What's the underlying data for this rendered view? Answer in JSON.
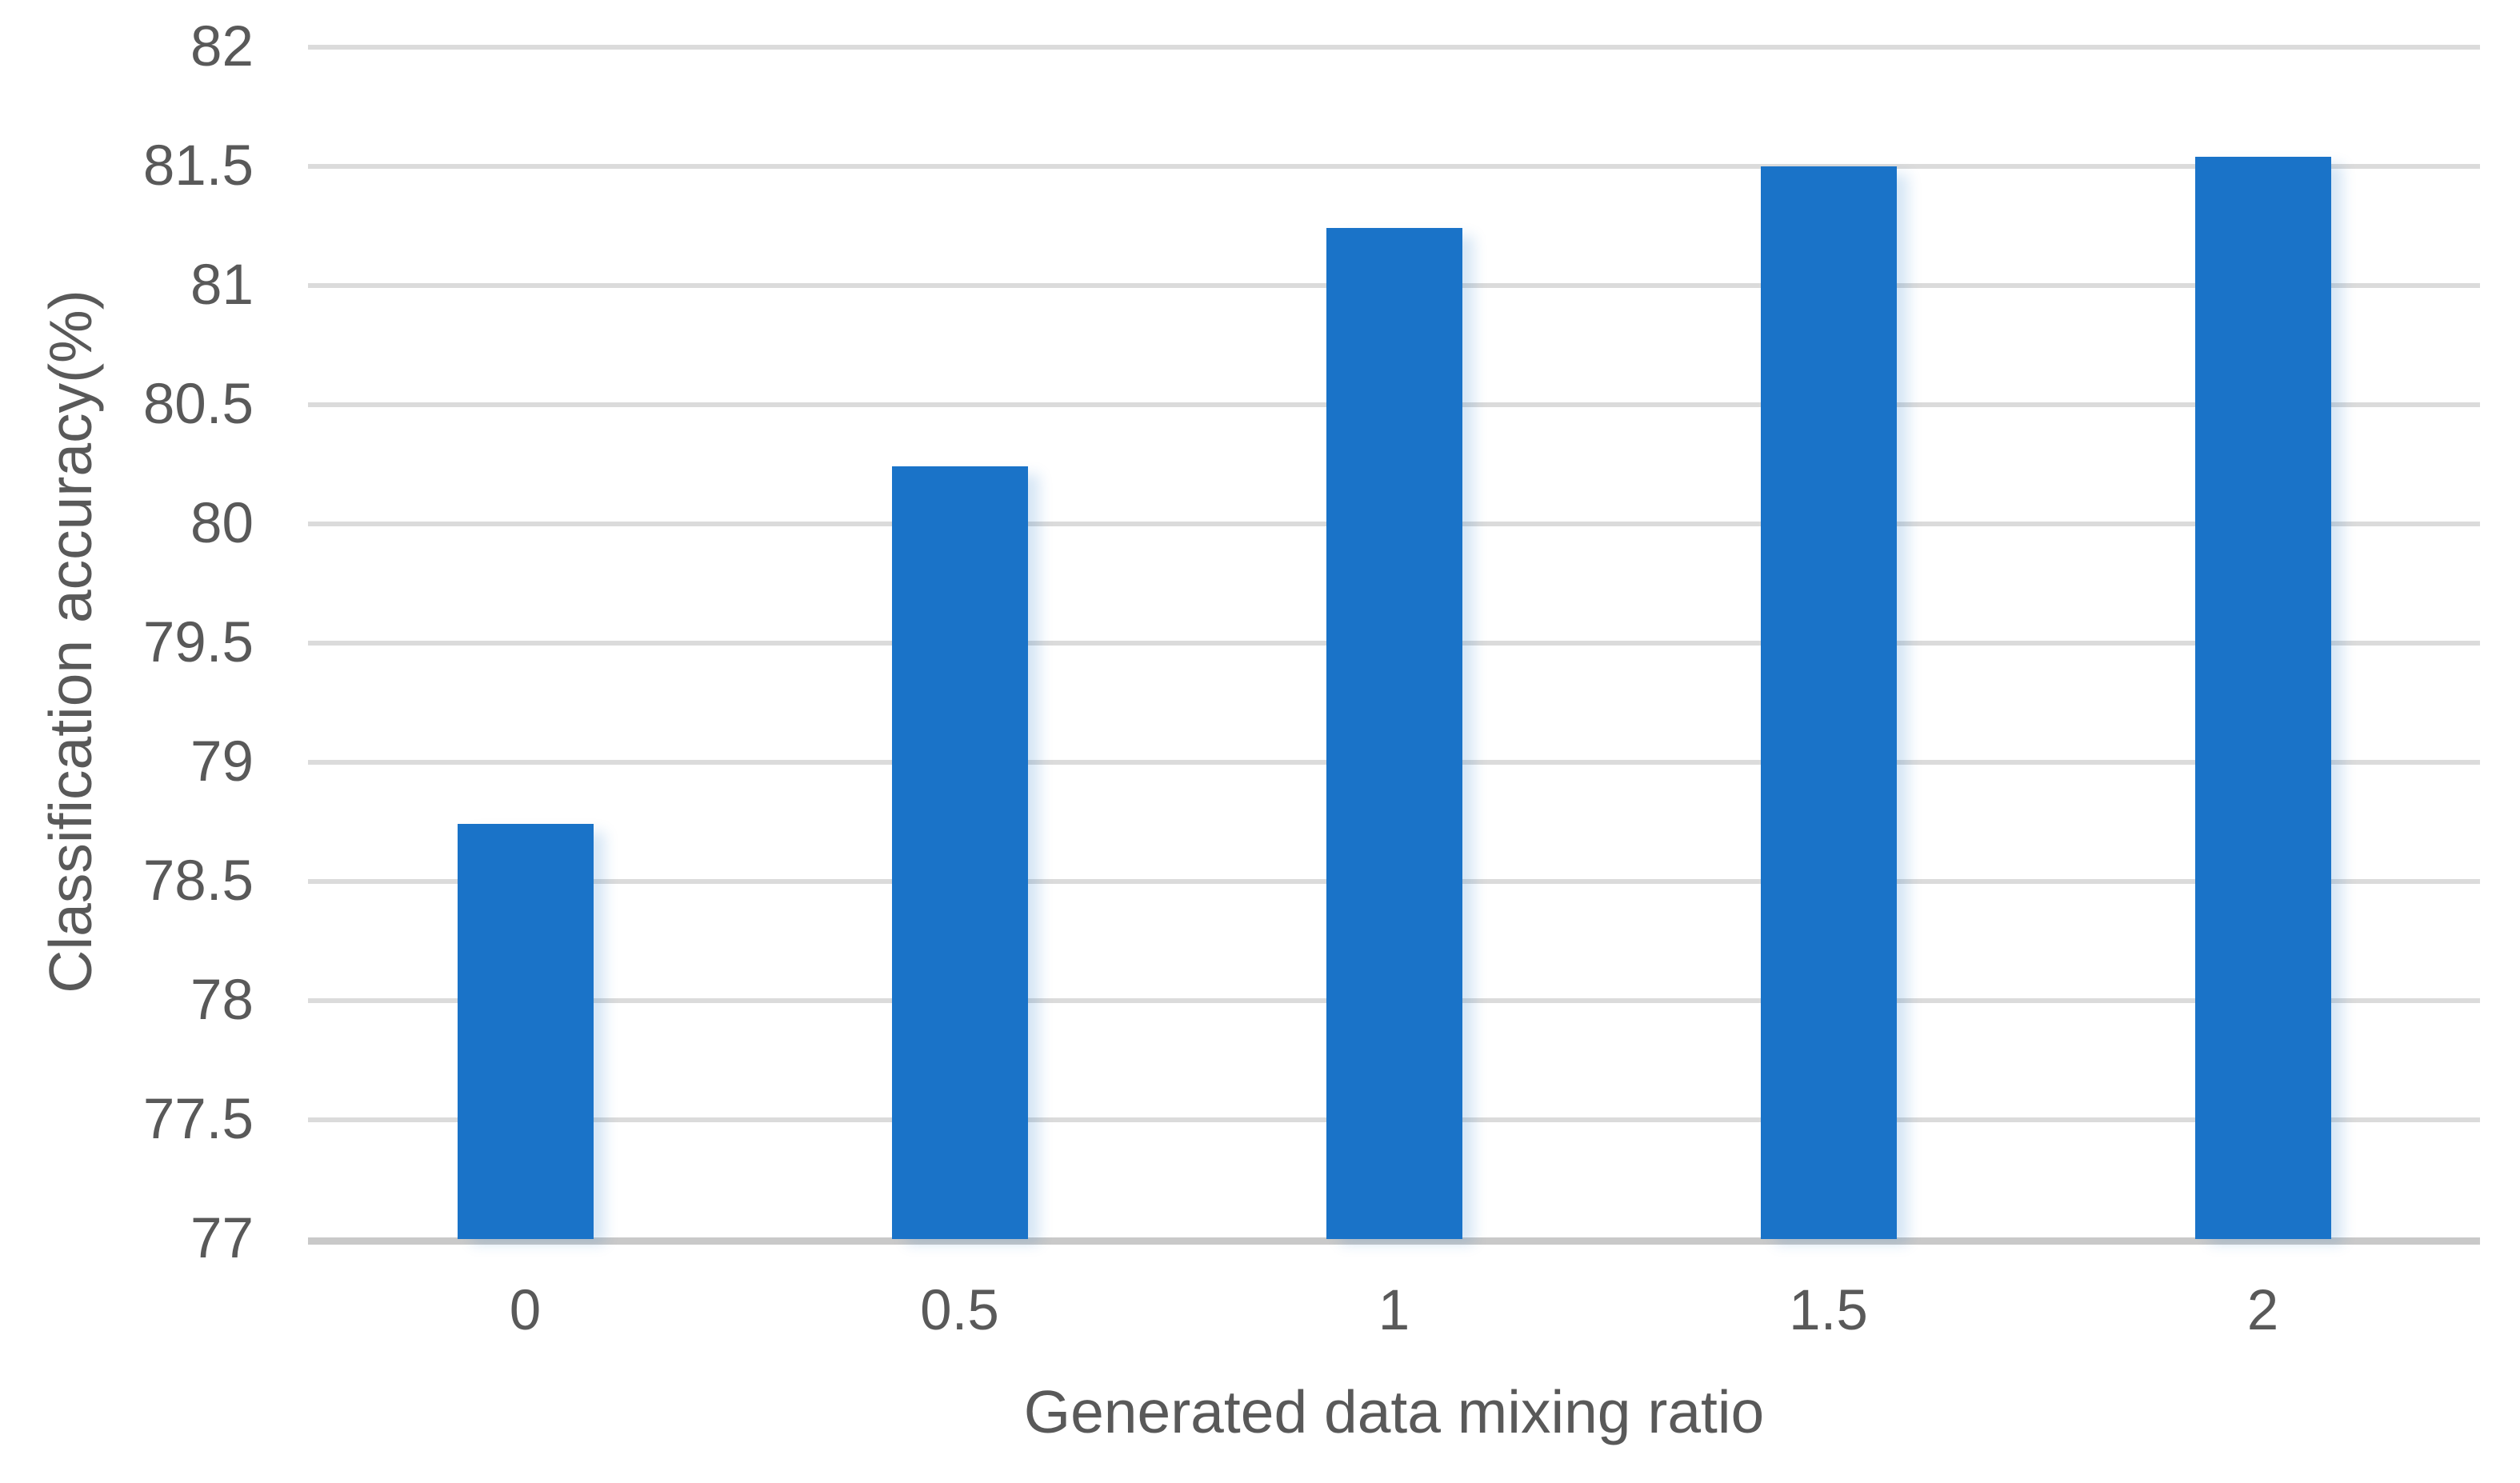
{
  "chart_data": {
    "type": "bar",
    "categories": [
      "0",
      "0.5",
      "1",
      "1.5",
      "2"
    ],
    "values": [
      78.74,
      80.24,
      81.24,
      81.5,
      81.54
    ],
    "title": "",
    "xlabel": "Generated data mixing ratio",
    "ylabel": "Classification accuracy(%)",
    "ylim": [
      77,
      82
    ],
    "ytick_step": 0.5,
    "ytick_labels": [
      "82",
      "81.5",
      "81",
      "80.5",
      "80",
      "79.5",
      "79",
      "78.5",
      "78",
      "77.5",
      "77"
    ],
    "grid": true,
    "legend": false,
    "series_count": 1
  },
  "style": {
    "bar_color": "#1A73C8",
    "bar_shadow_color": "rgba(26,115,200,0.18)",
    "grid_color": "#DBDBDB",
    "axis_line_color": "#C9C9C9",
    "text_color": "#595959",
    "background_color": "#FFFFFF"
  }
}
